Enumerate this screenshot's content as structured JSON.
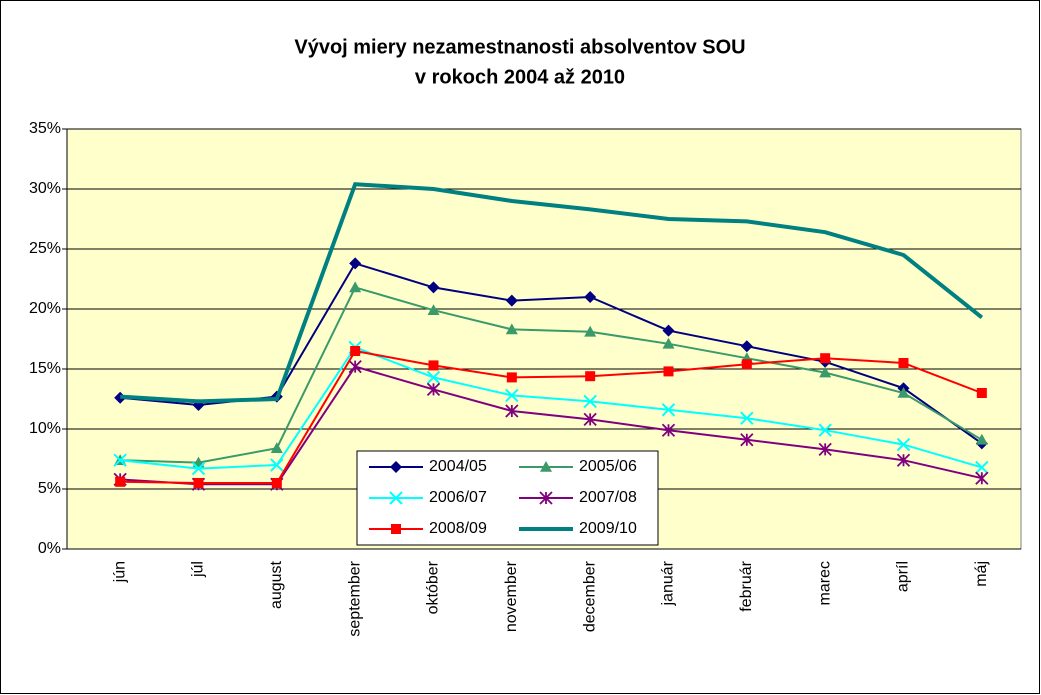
{
  "chart_data": {
    "type": "line",
    "title": [
      "Vývoj miery nezamestnanosti absolventov SOU",
      "v rokoch 2004 až 2010"
    ],
    "categories": [
      "jún",
      "júl",
      "august",
      "september",
      "október",
      "november",
      "december",
      "január",
      "február",
      "marec",
      "apríl",
      "máj"
    ],
    "series": [
      {
        "name": "2004/05",
        "color": "#000080",
        "marker": "diamond",
        "values": [
          12.6,
          12.0,
          12.7,
          23.8,
          21.8,
          20.7,
          21.0,
          18.2,
          16.9,
          15.6,
          13.4,
          8.8
        ]
      },
      {
        "name": "2005/06",
        "color": "#3a9a6a",
        "marker": "triangle",
        "values": [
          7.4,
          7.2,
          8.4,
          21.8,
          19.9,
          18.3,
          18.1,
          17.1,
          15.9,
          14.7,
          13.0,
          9.1
        ]
      },
      {
        "name": "2006/07",
        "color": "#00ffff",
        "marker": "x",
        "values": [
          7.4,
          6.7,
          7.0,
          16.8,
          14.3,
          12.8,
          12.3,
          11.6,
          10.9,
          9.9,
          8.7,
          6.8
        ]
      },
      {
        "name": "2007/08",
        "color": "#800080",
        "marker": "star",
        "values": [
          5.8,
          5.4,
          5.4,
          15.2,
          13.3,
          11.5,
          10.8,
          9.9,
          9.1,
          8.3,
          7.4,
          5.9
        ]
      },
      {
        "name": "2008/09",
        "color": "#ff0000",
        "marker": "square",
        "values": [
          5.6,
          5.5,
          5.5,
          16.5,
          15.3,
          14.3,
          14.4,
          14.8,
          15.4,
          15.9,
          15.5,
          13.0
        ]
      },
      {
        "name": "2009/10",
        "color": "#008080",
        "marker": "none",
        "values": [
          12.7,
          12.3,
          12.5,
          30.4,
          30.0,
          29.0,
          28.3,
          27.5,
          27.3,
          26.4,
          24.5,
          19.3
        ]
      }
    ],
    "ylim": [
      0,
      35
    ],
    "yticks": [
      {
        "value": 0,
        "label": "0%"
      },
      {
        "value": 5,
        "label": "5%"
      },
      {
        "value": 10,
        "label": "10%"
      },
      {
        "value": 15,
        "label": "15%"
      },
      {
        "value": 20,
        "label": "20%"
      },
      {
        "value": 25,
        "label": "25%"
      },
      {
        "value": 30,
        "label": "30%"
      },
      {
        "value": 35,
        "label": "35%"
      }
    ],
    "grid": true,
    "background": "#ffffcc",
    "legend": "bottom-center"
  }
}
